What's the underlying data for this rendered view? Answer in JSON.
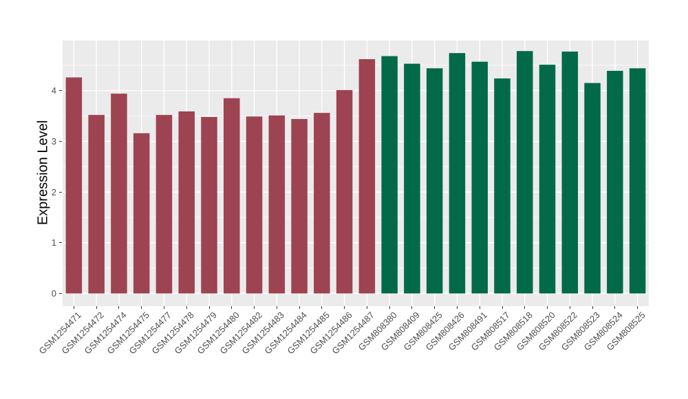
{
  "chart": {
    "panel_bg": "#EBEBEB",
    "grid_color": "#FFFFFF",
    "tick_mark_color": "#333333",
    "axis_text_color": "#4D4D4D",
    "group_colors": {
      "gsm1254_group": "#9E4352",
      "gsm808_group": "#036A49"
    }
  },
  "chart_data": {
    "type": "bar",
    "title": "",
    "xlabel": "",
    "ylabel": "Expression Level",
    "categories": [
      "GSM1254471",
      "GSM1254472",
      "GSM1254474",
      "GSM1254475",
      "GSM1254477",
      "GSM1254478",
      "GSM1254479",
      "GSM1254480",
      "GSM1254482",
      "GSM1254483",
      "GSM1254484",
      "GSM1254485",
      "GSM1254486",
      "GSM1254487",
      "GSM808380",
      "GSM808409",
      "GSM808425",
      "GSM808426",
      "GSM808491",
      "GSM808517",
      "GSM808518",
      "GSM808520",
      "GSM808522",
      "GSM808523",
      "GSM808524",
      "GSM808525"
    ],
    "values": [
      4.26,
      3.52,
      3.94,
      3.16,
      3.52,
      3.59,
      3.48,
      3.85,
      3.49,
      3.51,
      3.44,
      3.56,
      4.01,
      4.62,
      4.68,
      4.53,
      4.44,
      4.74,
      4.57,
      4.24,
      4.78,
      4.51,
      4.77,
      4.15,
      4.39,
      4.44
    ],
    "bar_colors": [
      "#9E4352",
      "#9E4352",
      "#9E4352",
      "#9E4352",
      "#9E4352",
      "#9E4352",
      "#9E4352",
      "#9E4352",
      "#9E4352",
      "#9E4352",
      "#9E4352",
      "#9E4352",
      "#9E4352",
      "#9E4352",
      "#036A49",
      "#036A49",
      "#036A49",
      "#036A49",
      "#036A49",
      "#036A49",
      "#036A49",
      "#036A49",
      "#036A49",
      "#036A49",
      "#036A49",
      "#036A49"
    ],
    "yticks": [
      0,
      1,
      2,
      3,
      4
    ],
    "ylim": [
      -0.25,
      5.0
    ],
    "minor_grid_step": 0.5,
    "grid": "on",
    "legend_position": "none"
  }
}
